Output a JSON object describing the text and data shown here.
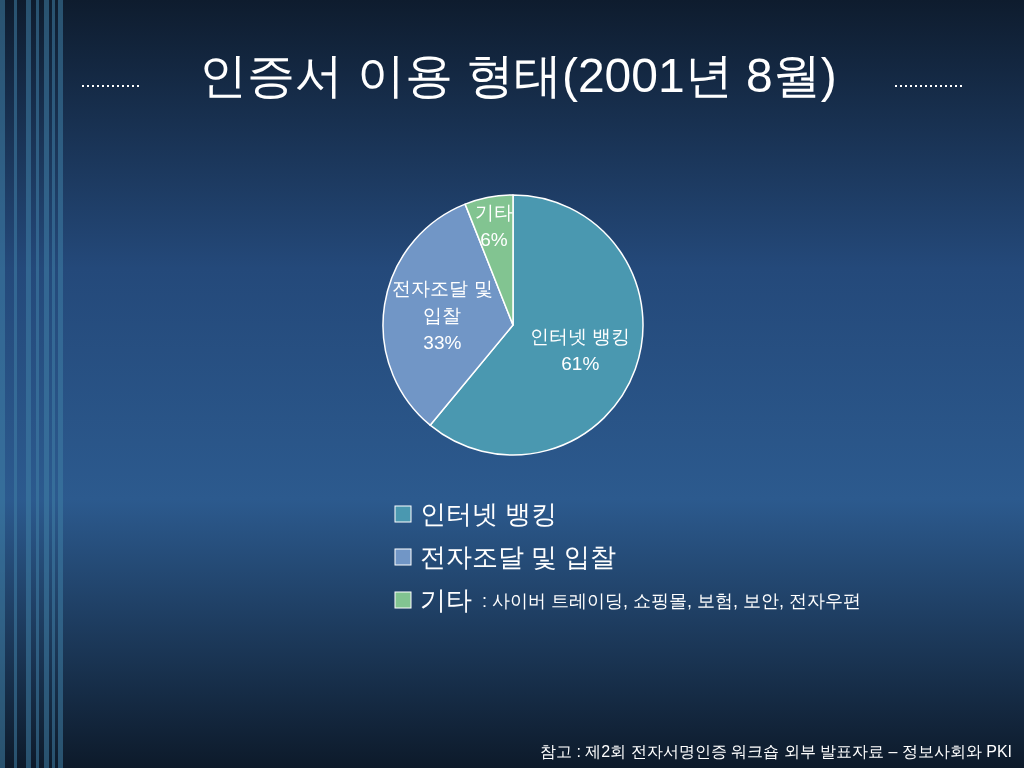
{
  "chart_data": {
    "type": "pie",
    "title": "인증서 이용 형태(2001년 8월)",
    "categories": [
      "인터넷 뱅킹",
      "전자조달 및 입찰",
      "기타"
    ],
    "values": [
      61,
      33,
      6
    ],
    "colors": [
      "#4a98b0",
      "#7196c6",
      "#82c491"
    ],
    "value_labels": [
      "61%",
      "33%",
      "6%"
    ],
    "legend": "bottom",
    "annotations": [
      ": 사이버 트레이딩, 쇼핑몰, 보험, 보안, 전자우편",
      "참고 : 제2회 전자서명인증 워크숍 외부 발표자료 – 정보사회와 PKI"
    ]
  }
}
